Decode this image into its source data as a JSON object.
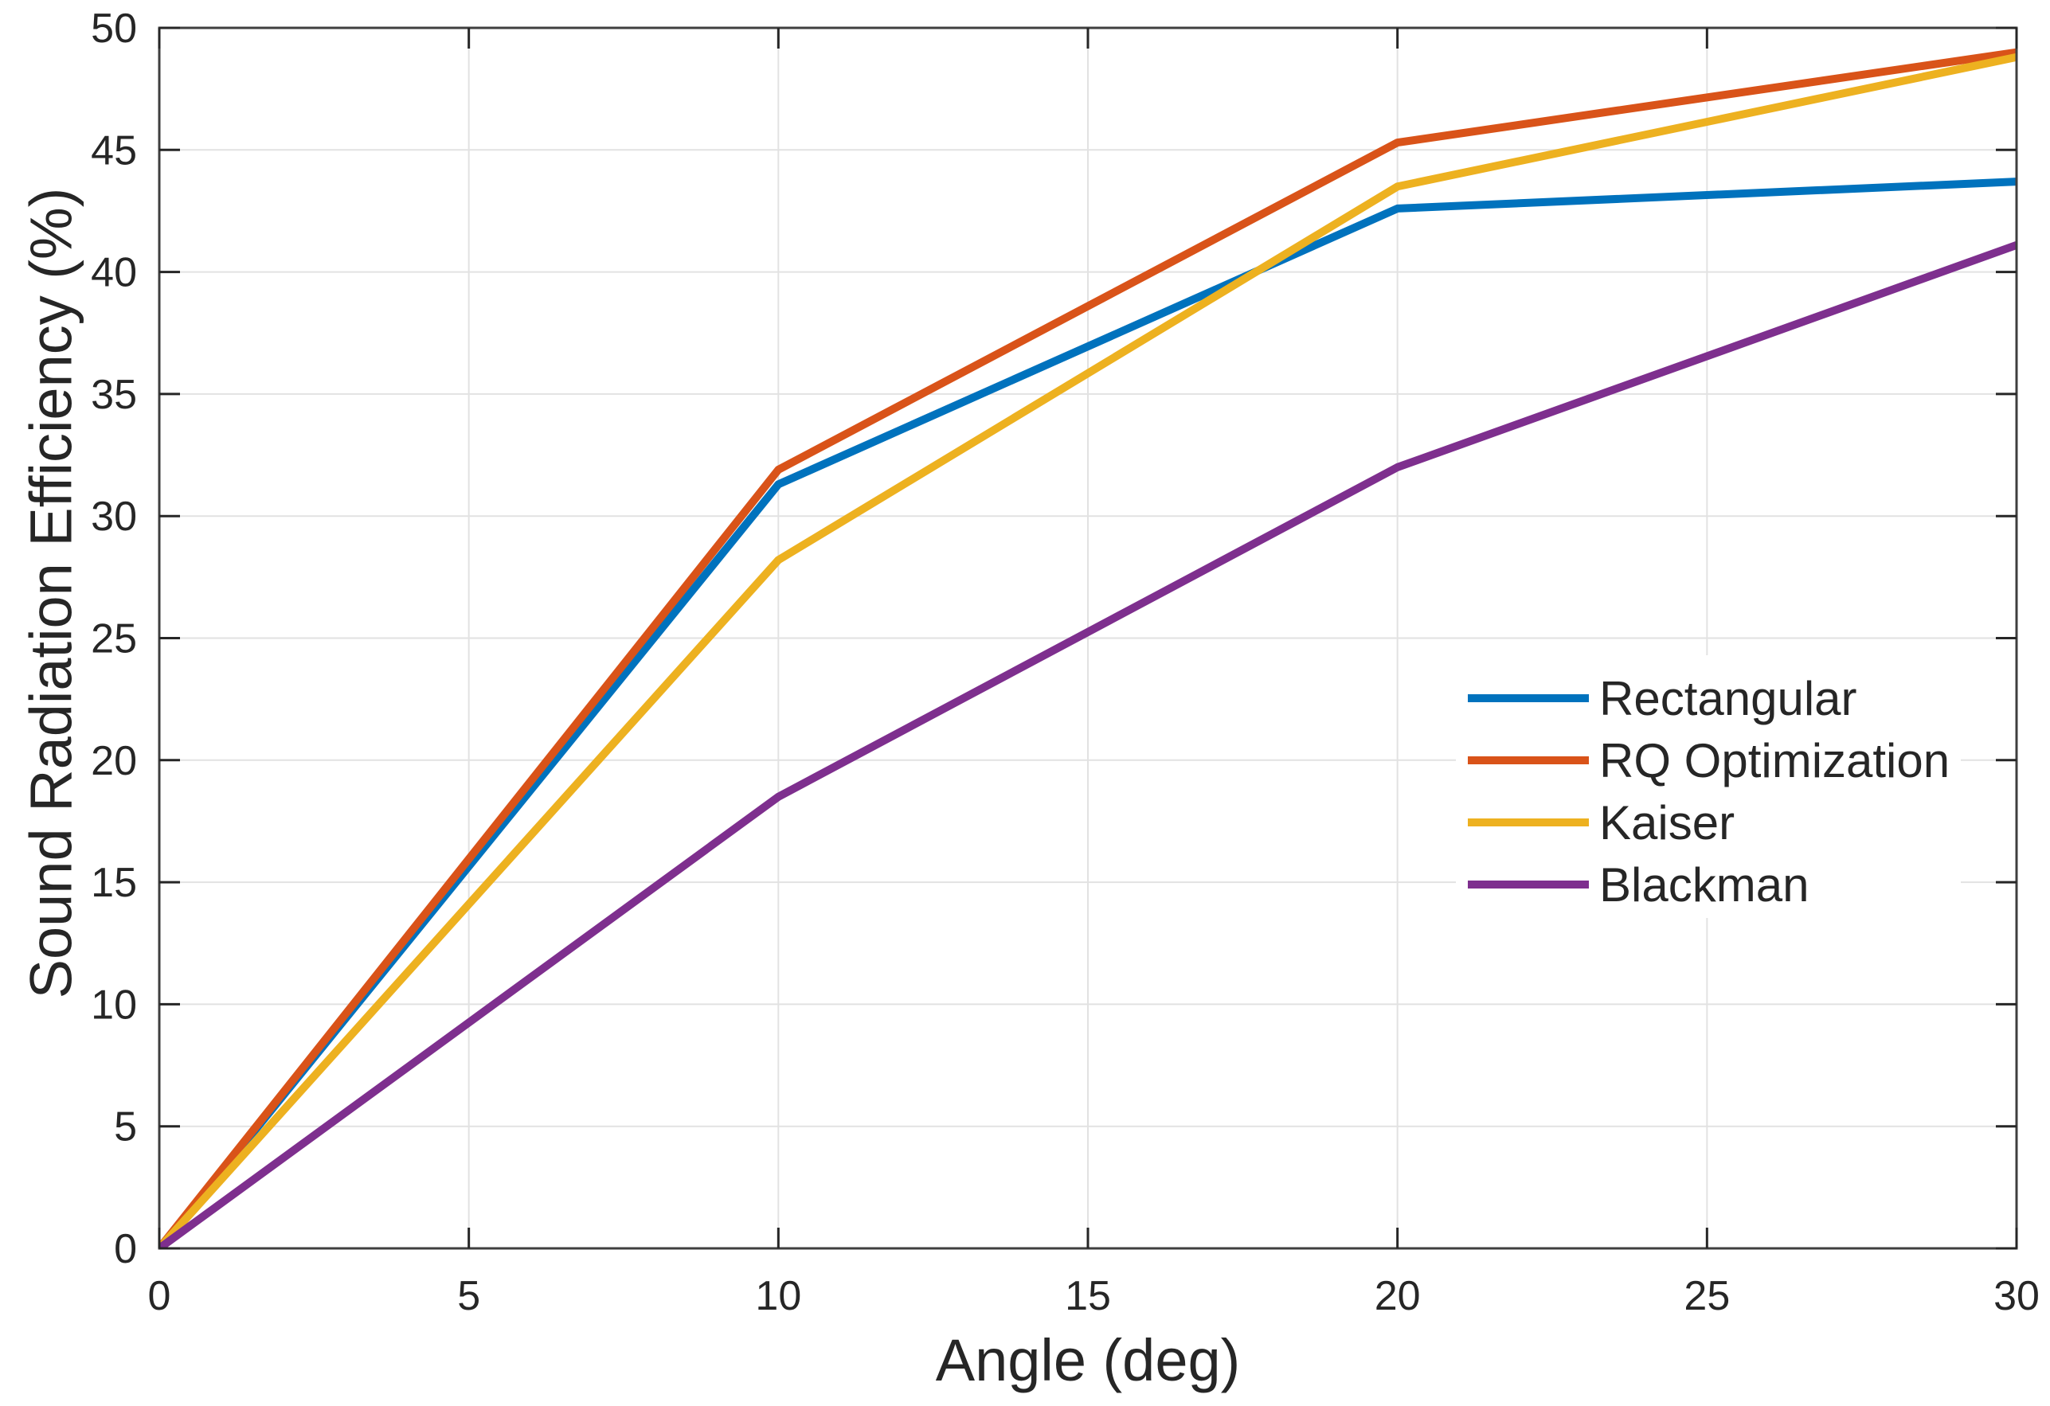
{
  "chart_data": {
    "type": "line",
    "x": [
      0,
      10,
      20,
      30
    ],
    "series": [
      {
        "name": "Rectangular",
        "color": "#0072BD",
        "values": [
          0,
          31.3,
          42.6,
          43.7
        ]
      },
      {
        "name": "RQ Optimization",
        "color": "#D95319",
        "values": [
          0,
          31.9,
          45.3,
          49.0
        ]
      },
      {
        "name": "Kaiser",
        "color": "#EDB120",
        "values": [
          0,
          28.2,
          43.5,
          48.8
        ]
      },
      {
        "name": "Blackman",
        "color": "#7E2F8E",
        "values": [
          0,
          18.5,
          32.0,
          41.1
        ]
      }
    ],
    "title": "",
    "xlabel": "Angle (deg)",
    "ylabel": "Sound Radiation Efficiency (%)",
    "xlim": [
      0,
      30
    ],
    "ylim": [
      0,
      50
    ],
    "xticks": [
      0,
      5,
      10,
      15,
      20,
      25,
      30
    ],
    "yticks": [
      0,
      5,
      10,
      15,
      20,
      25,
      30,
      35,
      40,
      45,
      50
    ],
    "grid": true,
    "legend": {
      "entries": [
        "Rectangular",
        "RQ Optimization",
        "Kaiser",
        "Blackman"
      ],
      "position": "inside-right",
      "border": "none",
      "background": "#ffffff"
    },
    "colors": {
      "axis_box": "#3f3f3f",
      "tick_mark": "#262626",
      "grid_line": "#e2e2e2",
      "text": "#262626",
      "background": "#ffffff"
    }
  }
}
